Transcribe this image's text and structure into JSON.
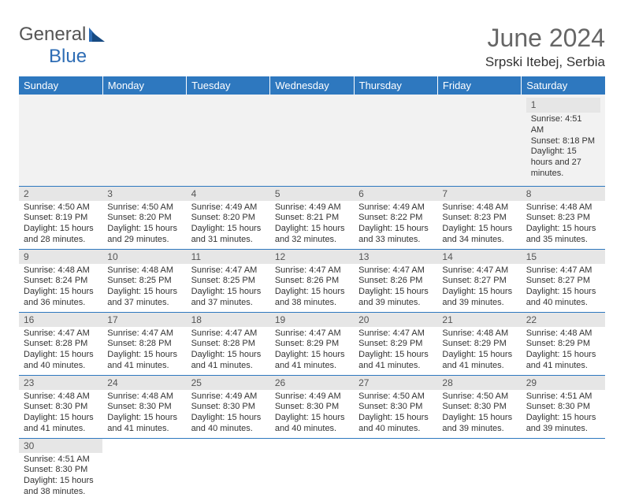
{
  "brand": {
    "part1": "General",
    "part2": "Blue"
  },
  "title": {
    "month": "June 2024",
    "location": "Srpski Itebej, Serbia"
  },
  "colors": {
    "header_bg": "#2e78bf",
    "header_text": "#ffffff",
    "daynum_bg": "#e6e6e6",
    "empty_bg": "#f2f2f2",
    "grid_line": "#2e78bf",
    "text": "#333333",
    "title_text": "#666666",
    "brand_blue": "#2e6db5"
  },
  "weekdays": [
    "Sunday",
    "Monday",
    "Tuesday",
    "Wednesday",
    "Thursday",
    "Friday",
    "Saturday"
  ],
  "weeks": [
    [
      null,
      null,
      null,
      null,
      null,
      null,
      {
        "n": "1",
        "sr": "4:51 AM",
        "ss": "8:18 PM",
        "dl": "15 hours and 27 minutes."
      }
    ],
    [
      {
        "n": "2",
        "sr": "4:50 AM",
        "ss": "8:19 PM",
        "dl": "15 hours and 28 minutes."
      },
      {
        "n": "3",
        "sr": "4:50 AM",
        "ss": "8:20 PM",
        "dl": "15 hours and 29 minutes."
      },
      {
        "n": "4",
        "sr": "4:49 AM",
        "ss": "8:20 PM",
        "dl": "15 hours and 31 minutes."
      },
      {
        "n": "5",
        "sr": "4:49 AM",
        "ss": "8:21 PM",
        "dl": "15 hours and 32 minutes."
      },
      {
        "n": "6",
        "sr": "4:49 AM",
        "ss": "8:22 PM",
        "dl": "15 hours and 33 minutes."
      },
      {
        "n": "7",
        "sr": "4:48 AM",
        "ss": "8:23 PM",
        "dl": "15 hours and 34 minutes."
      },
      {
        "n": "8",
        "sr": "4:48 AM",
        "ss": "8:23 PM",
        "dl": "15 hours and 35 minutes."
      }
    ],
    [
      {
        "n": "9",
        "sr": "4:48 AM",
        "ss": "8:24 PM",
        "dl": "15 hours and 36 minutes."
      },
      {
        "n": "10",
        "sr": "4:48 AM",
        "ss": "8:25 PM",
        "dl": "15 hours and 37 minutes."
      },
      {
        "n": "11",
        "sr": "4:47 AM",
        "ss": "8:25 PM",
        "dl": "15 hours and 37 minutes."
      },
      {
        "n": "12",
        "sr": "4:47 AM",
        "ss": "8:26 PM",
        "dl": "15 hours and 38 minutes."
      },
      {
        "n": "13",
        "sr": "4:47 AM",
        "ss": "8:26 PM",
        "dl": "15 hours and 39 minutes."
      },
      {
        "n": "14",
        "sr": "4:47 AM",
        "ss": "8:27 PM",
        "dl": "15 hours and 39 minutes."
      },
      {
        "n": "15",
        "sr": "4:47 AM",
        "ss": "8:27 PM",
        "dl": "15 hours and 40 minutes."
      }
    ],
    [
      {
        "n": "16",
        "sr": "4:47 AM",
        "ss": "8:28 PM",
        "dl": "15 hours and 40 minutes."
      },
      {
        "n": "17",
        "sr": "4:47 AM",
        "ss": "8:28 PM",
        "dl": "15 hours and 41 minutes."
      },
      {
        "n": "18",
        "sr": "4:47 AM",
        "ss": "8:28 PM",
        "dl": "15 hours and 41 minutes."
      },
      {
        "n": "19",
        "sr": "4:47 AM",
        "ss": "8:29 PM",
        "dl": "15 hours and 41 minutes."
      },
      {
        "n": "20",
        "sr": "4:47 AM",
        "ss": "8:29 PM",
        "dl": "15 hours and 41 minutes."
      },
      {
        "n": "21",
        "sr": "4:48 AM",
        "ss": "8:29 PM",
        "dl": "15 hours and 41 minutes."
      },
      {
        "n": "22",
        "sr": "4:48 AM",
        "ss": "8:29 PM",
        "dl": "15 hours and 41 minutes."
      }
    ],
    [
      {
        "n": "23",
        "sr": "4:48 AM",
        "ss": "8:30 PM",
        "dl": "15 hours and 41 minutes."
      },
      {
        "n": "24",
        "sr": "4:48 AM",
        "ss": "8:30 PM",
        "dl": "15 hours and 41 minutes."
      },
      {
        "n": "25",
        "sr": "4:49 AM",
        "ss": "8:30 PM",
        "dl": "15 hours and 40 minutes."
      },
      {
        "n": "26",
        "sr": "4:49 AM",
        "ss": "8:30 PM",
        "dl": "15 hours and 40 minutes."
      },
      {
        "n": "27",
        "sr": "4:50 AM",
        "ss": "8:30 PM",
        "dl": "15 hours and 40 minutes."
      },
      {
        "n": "28",
        "sr": "4:50 AM",
        "ss": "8:30 PM",
        "dl": "15 hours and 39 minutes."
      },
      {
        "n": "29",
        "sr": "4:51 AM",
        "ss": "8:30 PM",
        "dl": "15 hours and 39 minutes."
      }
    ],
    [
      {
        "n": "30",
        "sr": "4:51 AM",
        "ss": "8:30 PM",
        "dl": "15 hours and 38 minutes."
      },
      null,
      null,
      null,
      null,
      null,
      null
    ]
  ],
  "labels": {
    "sunrise": "Sunrise:",
    "sunset": "Sunset:",
    "daylight": "Daylight:"
  }
}
